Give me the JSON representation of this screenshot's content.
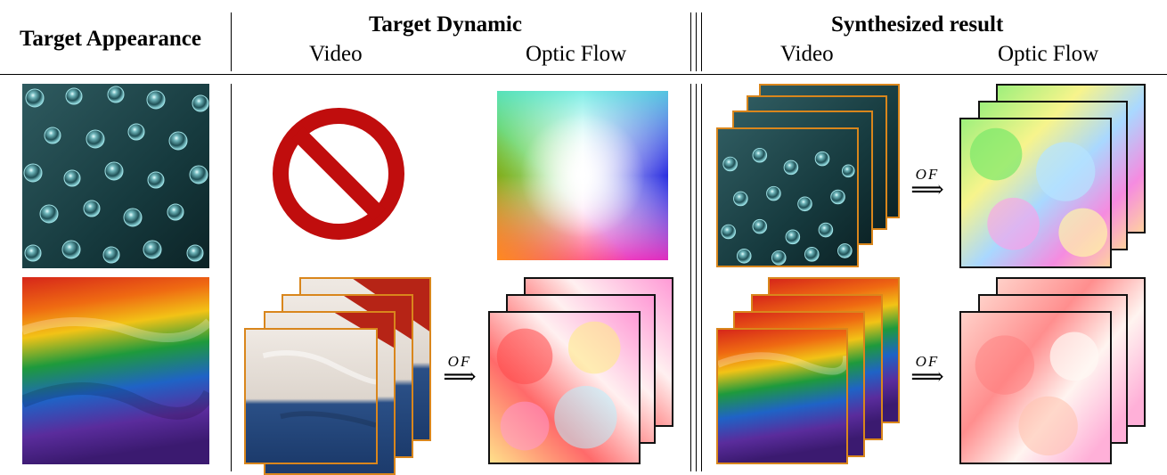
{
  "header": {
    "target_appearance": "Target Appearance",
    "target_dynamic": "Target Dynamic",
    "synthesized_result": "Synthesized result",
    "video_1": "Video",
    "optic_flow_1": "Optic Flow",
    "video_2": "Video",
    "optic_flow_2": "Optic Flow"
  },
  "arrows": {
    "of_symbol": "OF",
    "arrow_glyph": "⟹"
  },
  "colors": {
    "frame_orange": "#d9861c",
    "prohibition_red": "#c00d0d",
    "bubble_bg": "#16383c"
  },
  "icons": [
    "prohibition-icon"
  ]
}
